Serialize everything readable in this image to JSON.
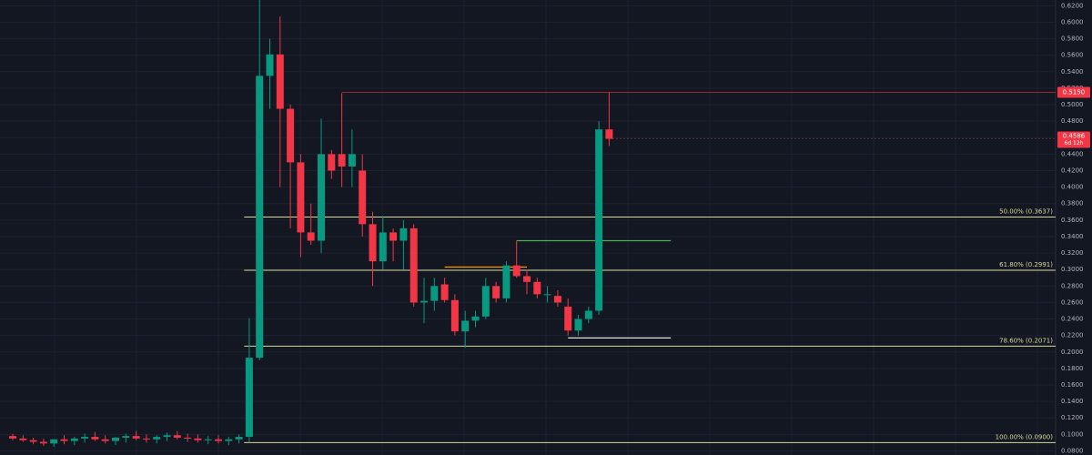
{
  "chart_data": {
    "type": "candlestick",
    "up_color": "#089981",
    "down_color": "#f23645",
    "open": [
      0.098,
      0.095,
      0.093,
      0.091,
      0.089,
      0.094,
      0.092,
      0.095,
      0.097,
      0.094,
      0.092,
      0.096,
      0.098,
      0.095,
      0.094,
      0.097,
      0.099,
      0.096,
      0.095,
      0.093,
      0.094,
      0.092,
      0.094,
      0.097,
      0.193,
      0.535,
      0.561,
      0.495,
      0.43,
      0.345,
      0.335,
      0.44,
      0.44,
      0.425,
      0.42,
      0.355,
      0.31,
      0.345,
      0.335,
      0.35,
      0.26,
      0.262,
      0.282,
      0.263,
      0.225,
      0.238,
      0.243,
      0.28,
      0.265,
      0.305,
      0.292,
      0.285,
      0.27,
      0.268,
      0.255,
      0.226,
      0.24,
      0.25,
      0.47
    ],
    "high": [
      0.101,
      0.099,
      0.096,
      0.095,
      0.094,
      0.099,
      0.097,
      0.101,
      0.103,
      0.099,
      0.097,
      0.101,
      0.104,
      0.1,
      0.099,
      0.102,
      0.104,
      0.101,
      0.1,
      0.098,
      0.099,
      0.097,
      0.1,
      0.241,
      0.63,
      0.58,
      0.607,
      0.5,
      0.44,
      0.38,
      0.483,
      0.445,
      0.514,
      0.47,
      0.44,
      0.37,
      0.365,
      0.35,
      0.36,
      0.355,
      0.29,
      0.29,
      0.29,
      0.27,
      0.25,
      0.25,
      0.29,
      0.285,
      0.31,
      0.335,
      0.3,
      0.29,
      0.28,
      0.275,
      0.265,
      0.245,
      0.255,
      0.48,
      0.515
    ],
    "low": [
      0.093,
      0.091,
      0.088,
      0.086,
      0.085,
      0.088,
      0.087,
      0.09,
      0.092,
      0.089,
      0.087,
      0.09,
      0.093,
      0.09,
      0.089,
      0.092,
      0.094,
      0.091,
      0.09,
      0.088,
      0.089,
      0.087,
      0.089,
      0.09,
      0.19,
      0.495,
      0.4,
      0.35,
      0.315,
      0.33,
      0.32,
      0.41,
      0.4,
      0.4,
      0.34,
      0.28,
      0.3,
      0.31,
      0.3,
      0.255,
      0.235,
      0.25,
      0.26,
      0.22,
      0.205,
      0.23,
      0.24,
      0.26,
      0.26,
      0.29,
      0.27,
      0.265,
      0.26,
      0.255,
      0.22,
      0.22,
      0.235,
      0.245,
      0.45
    ],
    "close": [
      0.095,
      0.093,
      0.091,
      0.089,
      0.094,
      0.092,
      0.095,
      0.097,
      0.094,
      0.092,
      0.096,
      0.098,
      0.095,
      0.094,
      0.097,
      0.099,
      0.096,
      0.095,
      0.093,
      0.094,
      0.092,
      0.094,
      0.097,
      0.193,
      0.535,
      0.561,
      0.495,
      0.43,
      0.345,
      0.335,
      0.44,
      0.42,
      0.425,
      0.44,
      0.355,
      0.31,
      0.345,
      0.335,
      0.35,
      0.26,
      0.262,
      0.28,
      0.263,
      0.225,
      0.238,
      0.243,
      0.28,
      0.265,
      0.305,
      0.292,
      0.285,
      0.27,
      0.27,
      0.26,
      0.226,
      0.24,
      0.25,
      0.47,
      0.4586
    ],
    "ylim": [
      0.075,
      0.627
    ],
    "yticks": [
      {
        "value": 0.08,
        "label": "0.0800"
      },
      {
        "value": 0.1,
        "label": "0.1000"
      },
      {
        "value": 0.12,
        "label": "0.1200"
      },
      {
        "value": 0.14,
        "label": "0.1400"
      },
      {
        "value": 0.16,
        "label": "0.1600"
      },
      {
        "value": 0.18,
        "label": "0.1800"
      },
      {
        "value": 0.2,
        "label": "0.2000"
      },
      {
        "value": 0.22,
        "label": "0.2200"
      },
      {
        "value": 0.24,
        "label": "0.2400"
      },
      {
        "value": 0.26,
        "label": "0.2600"
      },
      {
        "value": 0.28,
        "label": "0.2800"
      },
      {
        "value": 0.3,
        "label": "0.3000"
      },
      {
        "value": 0.32,
        "label": "0.3200"
      },
      {
        "value": 0.34,
        "label": "0.3400"
      },
      {
        "value": 0.36,
        "label": "0.3600"
      },
      {
        "value": 0.38,
        "label": "0.3800"
      },
      {
        "value": 0.4,
        "label": "0.4000"
      },
      {
        "value": 0.42,
        "label": "0.4200"
      },
      {
        "value": 0.44,
        "label": "0.4400"
      },
      {
        "value": 0.46,
        "label": "0.4600"
      },
      {
        "value": 0.48,
        "label": "0.4800"
      },
      {
        "value": 0.5,
        "label": "0.5000"
      },
      {
        "value": 0.52,
        "label": "0.5200"
      },
      {
        "value": 0.54,
        "label": "0.5400"
      },
      {
        "value": 0.56,
        "label": "0.5600"
      },
      {
        "value": 0.58,
        "label": "0.5800"
      },
      {
        "value": 0.6,
        "label": "0.6000"
      },
      {
        "value": 0.62,
        "label": "0.6200"
      }
    ],
    "grid": true,
    "fib_levels": [
      {
        "value": 0.3637,
        "label": "50.00% (0.3637)"
      },
      {
        "value": 0.2991,
        "label": "61.80% (0.2991)"
      },
      {
        "value": 0.2071,
        "label": "78.60% (0.2071)"
      },
      {
        "value": 0.09,
        "label": "100.00% (0.0900)"
      }
    ],
    "fib_color": "#d8d89a",
    "fib_from": 22.5,
    "high_line": {
      "value": 0.515,
      "label": "0.5150",
      "from": 32,
      "color": "#f23645"
    },
    "last_price": {
      "value": 0.4586,
      "label": "0.4586",
      "countdown": "6d 12h",
      "color": "#f23645"
    },
    "drawn_lines": [
      {
        "value": 0.335,
        "from": 49,
        "to": 64,
        "color": "#4caf50"
      },
      {
        "value": 0.303,
        "from": 42,
        "to": 50,
        "color": "#ff9800"
      },
      {
        "value": 0.217,
        "from": 54,
        "to": 64,
        "color": "#e0e0e0"
      }
    ]
  }
}
